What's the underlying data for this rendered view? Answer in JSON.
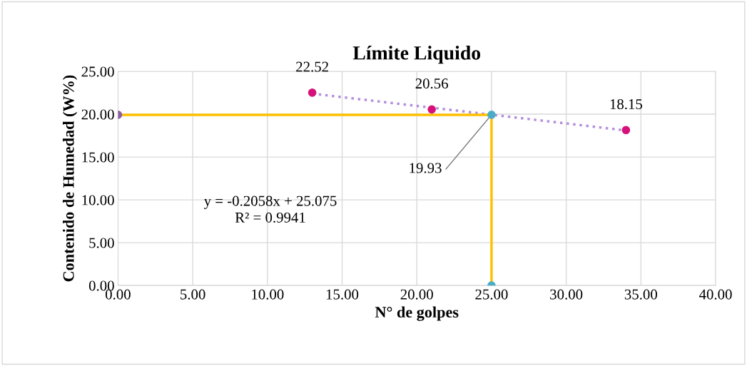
{
  "chart_data": {
    "type": "scatter",
    "title": "Límite Liquido",
    "xlabel": "N° de golpes",
    "ylabel": "Contenido de Humedad (W%)",
    "xlim": [
      0,
      40
    ],
    "ylim": [
      0,
      25
    ],
    "xticks": [
      {
        "value": 0,
        "label": "0.00"
      },
      {
        "value": 5,
        "label": "5.00"
      },
      {
        "value": 10,
        "label": "10.00"
      },
      {
        "value": 15,
        "label": "15.00"
      },
      {
        "value": 20,
        "label": "20.00"
      },
      {
        "value": 25,
        "label": "25.00"
      },
      {
        "value": 30,
        "label": "30.00"
      },
      {
        "value": 35,
        "label": "35.00"
      },
      {
        "value": 40,
        "label": "40.00"
      }
    ],
    "yticks": [
      {
        "value": 0,
        "label": "0.00"
      },
      {
        "value": 5,
        "label": "5.00"
      },
      {
        "value": 10,
        "label": "10.00"
      },
      {
        "value": 15,
        "label": "15.00"
      },
      {
        "value": 20,
        "label": "20.00"
      },
      {
        "value": 25,
        "label": "25.00"
      }
    ],
    "grid": true,
    "legend": false,
    "series": [
      {
        "type": "line",
        "color": "#b48fdc",
        "x": [
          13,
          34
        ],
        "values": [
          22.4,
          18.1
        ],
        "line_style": "dotted",
        "marker": "none"
      },
      {
        "type": "line",
        "color": "#ffc000",
        "x": [
          0,
          25,
          25
        ],
        "values": [
          19.93,
          19.93,
          0
        ],
        "line_style": "solid",
        "marker": "none"
      },
      {
        "color": "#d6127a",
        "x": [
          13,
          21,
          34
        ],
        "values": [
          22.52,
          20.56,
          18.15
        ],
        "value_labels": [
          "22.52",
          "20.56",
          "18.15"
        ],
        "marker": "circle"
      },
      {
        "color": "#8e5ea2",
        "x": [
          0
        ],
        "values": [
          19.93
        ],
        "marker": "circle"
      },
      {
        "color": "#4bacc6",
        "x": [
          25,
          25
        ],
        "values": [
          19.93,
          0
        ],
        "marker": "circle"
      }
    ],
    "annotations": [
      {
        "text": "19.93",
        "x": 25,
        "y": 19.93
      },
      "y = -0.2058x + 25.075\nR² = 0.9941"
    ]
  }
}
